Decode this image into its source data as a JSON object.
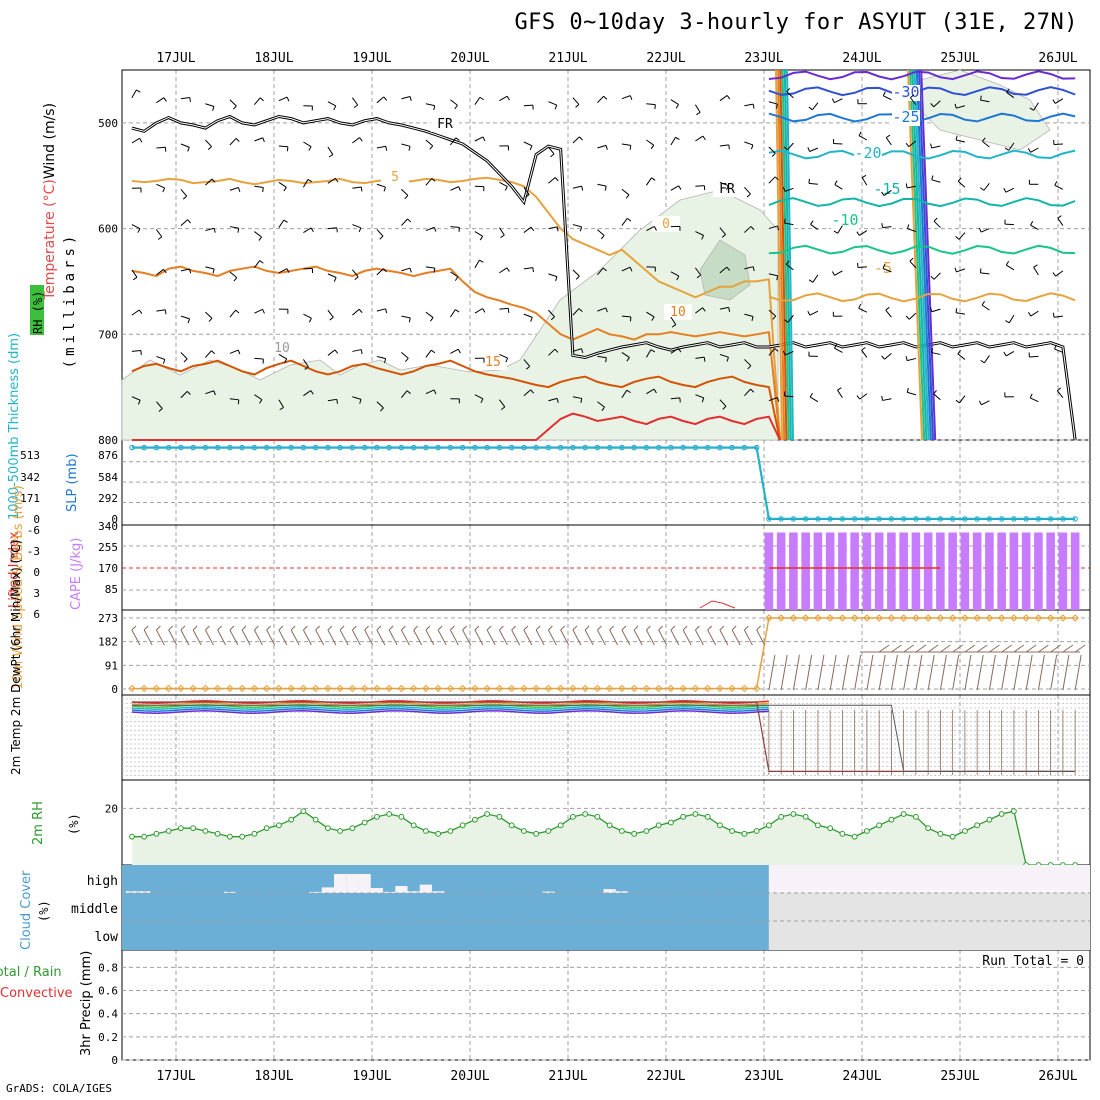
{
  "title": "GFS 0~10day 3-hourly for ASYUT (31E, 27N)",
  "credit": "GrADS: COLA/IGES",
  "colors": {
    "grid": "#a0a0a0",
    "rh_fill": "#e8f3e6",
    "rh_edge": "#b4b4b4",
    "cloud": "#6baed6",
    "cloud_clear": "#e4e4e4",
    "cloud_high_clear": "#f6f2f8",
    "cape": "#c77cff",
    "slp": "#1f77d4",
    "thick": "#22b5c9",
    "wind": "#e6a23c",
    "barb": "#8b6b5a",
    "rh2m": "#2e9a2e",
    "precip_total": "#2e9a2e",
    "precip_conv": "#e03030"
  },
  "chart_data": {
    "time_axis": {
      "labels": [
        "17JUL",
        "18JUL",
        "19JUL",
        "20JUL",
        "21JUL",
        "22JUL",
        "23JUL",
        "24JUL",
        "25JUL",
        "26JUL"
      ],
      "steps_per_day": 8,
      "start_offset_days": -0.45,
      "end_offset_days": 9.3
    },
    "panels": [
      {
        "id": "upper_air",
        "type": "contour",
        "y_label": "Wind (m/s)",
        "y_label_parts": [
          "Temperature (°C)",
          "Wind (m/s)"
        ],
        "y_label_units": "(millibars)",
        "rh_label": "RH (%)",
        "y_ticks": [
          500,
          600,
          700,
          800
        ],
        "y_range": [
          450,
          800
        ],
        "contour_labels": [
          "FR",
          "FR",
          "5",
          "0",
          "10",
          "15",
          "-5",
          "-10",
          "-15",
          "-20",
          "-25",
          "-30",
          "10"
        ],
        "temperature_contours": [
          {
            "level": 5,
            "color": "#e6a23c",
            "values": [
              555,
              556,
              555,
              553,
              554,
              557,
              556,
              555,
              553,
              556,
              558,
              556,
              554,
              555,
              557,
              556,
              555,
              553,
              556,
              557,
              555,
              554,
              556,
              555,
              553,
              554,
              556,
              555,
              553,
              552,
              554,
              556,
              560,
              570,
              585,
              600,
              610,
              615,
              620,
              625,
              620,
              630,
              640,
              650,
              655,
              660,
              665,
              660,
              655,
              655,
              650,
              650,
              648,
              650,
              652,
              650,
              648,
              652,
              655,
              652,
              650,
              650,
              648,
              650,
              652,
              650,
              648,
              650,
              650,
              648,
              652,
              650,
              648,
              650,
              648,
              652,
              650,
              650
            ]
          },
          {
            "level": 10,
            "color": "#e67e22",
            "values": [
              640,
              642,
              645,
              638,
              636,
              640,
              642,
              645,
              640,
              638,
              636,
              640,
              642,
              640,
              638,
              636,
              640,
              642,
              645,
              640,
              638,
              640,
              642,
              645,
              642,
              640,
              638,
              650,
              660,
              665,
              668,
              672,
              675,
              680,
              690,
              700,
              705,
              700,
              695,
              700,
              702,
              705,
              700,
              700,
              698,
              700,
              702,
              700,
              698,
              700,
              702,
              700,
              698,
              700,
              702,
              700,
              698,
              700,
              702,
              700,
              698,
              700,
              702,
              700,
              698,
              700,
              702,
              700,
              698,
              700,
              702,
              700,
              698,
              700,
              702,
              700,
              698,
              700
            ]
          },
          {
            "level": 15,
            "color": "#d35400",
            "values": [
              735,
              730,
              728,
              732,
              735,
              730,
              728,
              725,
              730,
              735,
              738,
              732,
              728,
              725,
              730,
              735,
              738,
              735,
              730,
              728,
              732,
              735,
              738,
              735,
              730,
              728,
              725,
              730,
              735,
              738,
              740,
              742,
              745,
              748,
              750,
              745,
              742,
              740,
              745,
              748,
              750,
              745,
              742,
              740,
              745,
              748,
              750,
              745,
              742,
              740,
              745,
              748,
              750,
              745,
              742,
              740,
              745,
              748,
              750,
              745,
              742,
              740,
              745,
              748,
              750,
              745,
              742,
              740,
              745,
              748,
              750,
              745,
              742,
              740,
              745,
              748,
              750,
              745
            ]
          },
          {
            "level": 20,
            "color": "#e03030",
            "values": [
              800,
              800,
              800,
              800,
              800,
              800,
              800,
              800,
              800,
              800,
              800,
              800,
              800,
              800,
              800,
              800,
              800,
              800,
              800,
              800,
              800,
              800,
              800,
              800,
              800,
              800,
              800,
              800,
              800,
              800,
              800,
              800,
              800,
              800,
              790,
              780,
              775,
              778,
              782,
              780,
              778,
              782,
              785,
              780,
              778,
              782,
              785,
              780,
              778,
              782,
              785,
              780,
              778,
              782,
              785,
              780,
              778,
              782,
              785,
              780,
              778,
              782,
              785,
              780,
              778,
              782,
              785,
              780,
              778,
              782,
              785,
              780,
              778,
              782,
              785,
              780,
              778,
              782
            ]
          }
        ],
        "freezing_line": [
          505,
          508,
          500,
          495,
          500,
          502,
          505,
          498,
          494,
          500,
          502,
          498,
          494,
          496,
          500,
          498,
          496,
          500,
          502,
          498,
          496,
          500,
          502,
          505,
          508,
          512,
          516,
          520,
          528,
          536,
          548,
          560,
          575,
          530,
          522,
          525,
          720,
          722,
          718,
          715,
          712,
          710,
          708,
          712,
          715,
          712,
          710,
          708,
          712,
          710,
          708,
          712,
          712,
          710,
          708,
          712,
          710,
          708,
          712,
          710,
          708,
          712,
          710,
          708,
          712,
          710,
          708,
          712,
          710,
          708,
          712,
          710,
          708,
          712,
          710,
          708,
          712,
          800
        ],
        "cold_contours": [
          {
            "level": -5,
            "color": "#e6a23c",
            "y": 665
          },
          {
            "level": -10,
            "color": "#19c48a",
            "y": 620
          },
          {
            "level": -15,
            "color": "#12b5a8",
            "y": 575
          },
          {
            "level": -20,
            "color": "#22b5c9",
            "y": 530
          },
          {
            "level": -25,
            "color": "#1f77d4",
            "y": 495
          },
          {
            "level": -30,
            "color": "#2f4fd4",
            "y": 470
          },
          {
            "level": -35,
            "color": "#6a2bd4",
            "y": 455
          }
        ]
      },
      {
        "id": "slp_thickness",
        "type": "line",
        "y_label_left": "1000-500mb Thickness (dm)",
        "y_label_right": "SLP (mb)",
        "y_ticks_left": [
          513,
          342,
          171,
          0
        ],
        "y_ticks_right": [
          876,
          584,
          292,
          0
        ],
        "y_range": [
          0,
          1000
        ],
        "slp_value_before": 980,
        "slp_value_after": 0,
        "thickness_value_before": 975,
        "thickness_value_after": 3,
        "drop_step": 52
      },
      {
        "id": "stability",
        "type": "bar",
        "y_label_left": "Lifted Index",
        "y_label_right": "CAPE (J/kg)",
        "y_ticks_left": [
          -6,
          -3,
          0,
          3,
          6
        ],
        "y_ticks_right": [
          340,
          255,
          170,
          85
        ],
        "y_range_cape": [
          0,
          340
        ],
        "cape_value_after": 310,
        "li_value_after": 0,
        "cape_start_step": 52
      },
      {
        "id": "surface_wind",
        "type": "line",
        "y_label": "10m Wind Speed & Barbs (m/s)",
        "y_ticks": [
          273,
          182,
          91,
          0
        ],
        "y_range": [
          0,
          273
        ],
        "speed_before": 2,
        "speed_after": 273,
        "jump_step": 52
      },
      {
        "id": "temperature_2m",
        "type": "line",
        "y_label": "2m Temp 2m DewPt (6hr Min/Max) (°C)",
        "y_range": [
          -100,
          40
        ],
        "values_before": [
          38,
          32
        ],
        "values_after": [
          -95,
          -95
        ],
        "drop_step": 52,
        "drop_step_dew": 63
      },
      {
        "id": "rh_2m",
        "type": "area",
        "y_label": "2m RH",
        "y_label_units": "(%)",
        "y_ticks": [
          20
        ],
        "y_range": [
          0,
          30
        ],
        "values": [
          10,
          10,
          11,
          12,
          13,
          13,
          12,
          11,
          10,
          10,
          11,
          13,
          14,
          16,
          19,
          16,
          13,
          12,
          13,
          15,
          17,
          18,
          17,
          14,
          12,
          11,
          12,
          14,
          16,
          18,
          17,
          14,
          12,
          11,
          12,
          14,
          17,
          18,
          17,
          14,
          12,
          11,
          12,
          14,
          15,
          17,
          18,
          17,
          14,
          12,
          11,
          12,
          14,
          17,
          18,
          17,
          14,
          13,
          11,
          10,
          12,
          14,
          16,
          18,
          17,
          13,
          11,
          10,
          12,
          14,
          16,
          18,
          19,
          0,
          0,
          0,
          0,
          0
        ]
      },
      {
        "id": "cloud_cover",
        "type": "area",
        "y_label": "Cloud Cover",
        "y_label_units": "(%)",
        "y_ticks": [
          "high",
          "middle",
          "low"
        ],
        "low_cover_until_step": 52,
        "high_cover_gaps": [
          {
            "step": 0,
            "pct": 6
          },
          {
            "step": 1,
            "pct": 6
          },
          {
            "step": 8,
            "pct": 4
          },
          {
            "step": 15,
            "pct": 4
          },
          {
            "step": 16,
            "pct": 20
          },
          {
            "step": 17,
            "pct": 68
          },
          {
            "step": 18,
            "pct": 68
          },
          {
            "step": 19,
            "pct": 68
          },
          {
            "step": 20,
            "pct": 18
          },
          {
            "step": 21,
            "pct": 4
          },
          {
            "step": 22,
            "pct": 25
          },
          {
            "step": 23,
            "pct": 6
          },
          {
            "step": 24,
            "pct": 30
          },
          {
            "step": 25,
            "pct": 6
          },
          {
            "step": 34,
            "pct": 5
          },
          {
            "step": 39,
            "pct": 14
          },
          {
            "step": 40,
            "pct": 6
          }
        ]
      },
      {
        "id": "precip",
        "type": "bar",
        "y_label_left": "Total / Rain",
        "y_label_conv": "Convective",
        "y_label": "3hr Precip (mm)",
        "y_ticks": [
          0.8,
          0.6,
          0.4,
          0.2,
          0
        ],
        "y_range": [
          0,
          0.95
        ],
        "run_total": "Run Total = 0",
        "values": []
      }
    ]
  }
}
